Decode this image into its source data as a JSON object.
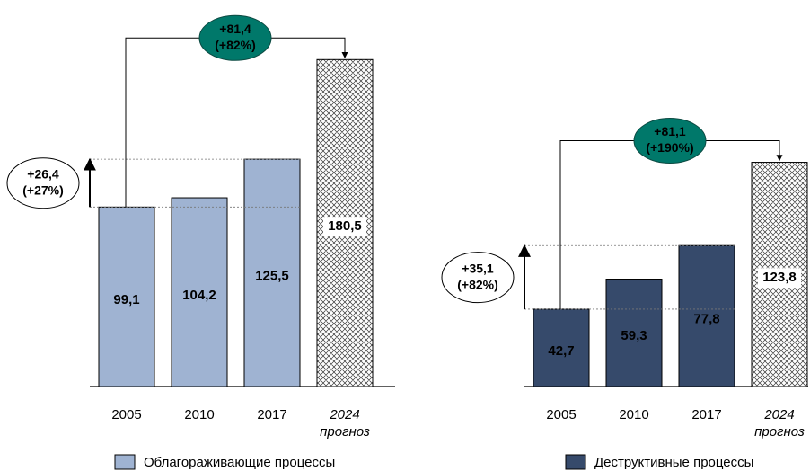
{
  "chart_data": [
    {
      "type": "bar",
      "name": "Облагораживающие процессы",
      "color": "#9fb3d2",
      "categories": [
        "2005",
        "2010",
        "2017",
        "2024 прогноз"
      ],
      "values": [
        99.1,
        104.2,
        125.5,
        180.5
      ],
      "value_labels": [
        "99,1",
        "104,2",
        "125,5",
        "180,5"
      ],
      "hatched": [
        false,
        false,
        false,
        true
      ],
      "annotations": [
        {
          "kind": "side",
          "from": 0,
          "to": 2,
          "color": "#ffffff",
          "lines": [
            "+26,4",
            "(+27%)"
          ]
        },
        {
          "kind": "bracket",
          "from": 0,
          "to": 3,
          "color": "#00786a",
          "lines": [
            "+81,4",
            "(+82%)"
          ]
        }
      ]
    },
    {
      "type": "bar",
      "name": "Деструктивные процессы",
      "color": "#364a6b",
      "categories": [
        "2005",
        "2010",
        "2017",
        "2024 прогноз"
      ],
      "values": [
        42.7,
        59.3,
        77.8,
        123.8
      ],
      "value_labels": [
        "42,7",
        "59,3",
        "77,8",
        "123,8"
      ],
      "hatched": [
        false,
        false,
        false,
        true
      ],
      "annotations": [
        {
          "kind": "side",
          "from": 0,
          "to": 2,
          "color": "#ffffff",
          "lines": [
            "+35,1",
            "(+82%)"
          ]
        },
        {
          "kind": "bracket",
          "from": 0,
          "to": 3,
          "color": "#00786a",
          "lines": [
            "+81,1",
            "(+190%)"
          ]
        }
      ]
    }
  ]
}
